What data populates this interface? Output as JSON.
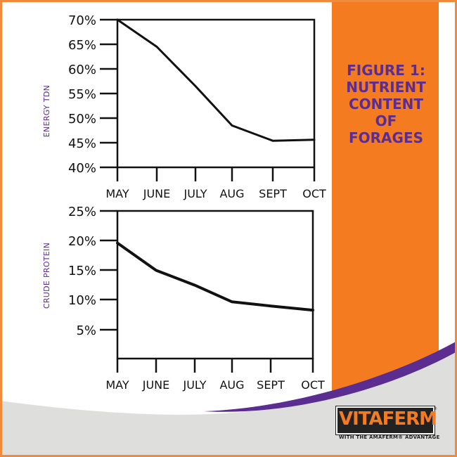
{
  "figure": {
    "title": "FIGURE 1:\nNUTRIENT\nCONTENT\nOF\nFORAGES"
  },
  "brand": {
    "name": "VITAFERM",
    "registered": "®",
    "tagline": "WITH THE AMAFERM® ADVANTAGE"
  },
  "colors": {
    "orange": "#f47b20",
    "purple": "#5b2d91",
    "grey": "#dededc",
    "line": "#111111"
  },
  "chart_data": [
    {
      "type": "line",
      "ylabel": "ENERGY TDN",
      "xlabel": "",
      "categories": [
        "MAY",
        "JUNE",
        "JULY",
        "AUG",
        "SEPT",
        "OCT"
      ],
      "yticks": [
        "70%",
        "65%",
        "60%",
        "55%",
        "50%",
        "45%",
        "40%"
      ],
      "ylim": [
        40,
        70
      ],
      "grid": false,
      "series": [
        {
          "values": [
            70,
            64.5,
            56.5,
            48.5,
            45.4,
            45.6
          ]
        }
      ]
    },
    {
      "type": "line",
      "ylabel": "CRUDE PROTEIN",
      "xlabel": "",
      "categories": [
        "MAY",
        "JUNE",
        "JULY",
        "AUG",
        "SEPT",
        "OCT"
      ],
      "yticks": [
        "25%",
        "20%",
        "15%",
        "10%",
        "5%"
      ],
      "ylim": [
        0,
        25
      ],
      "grid": false,
      "series": [
        {
          "values": [
            19.6,
            15,
            12.5,
            9.7,
            9,
            8.3
          ]
        }
      ]
    }
  ]
}
